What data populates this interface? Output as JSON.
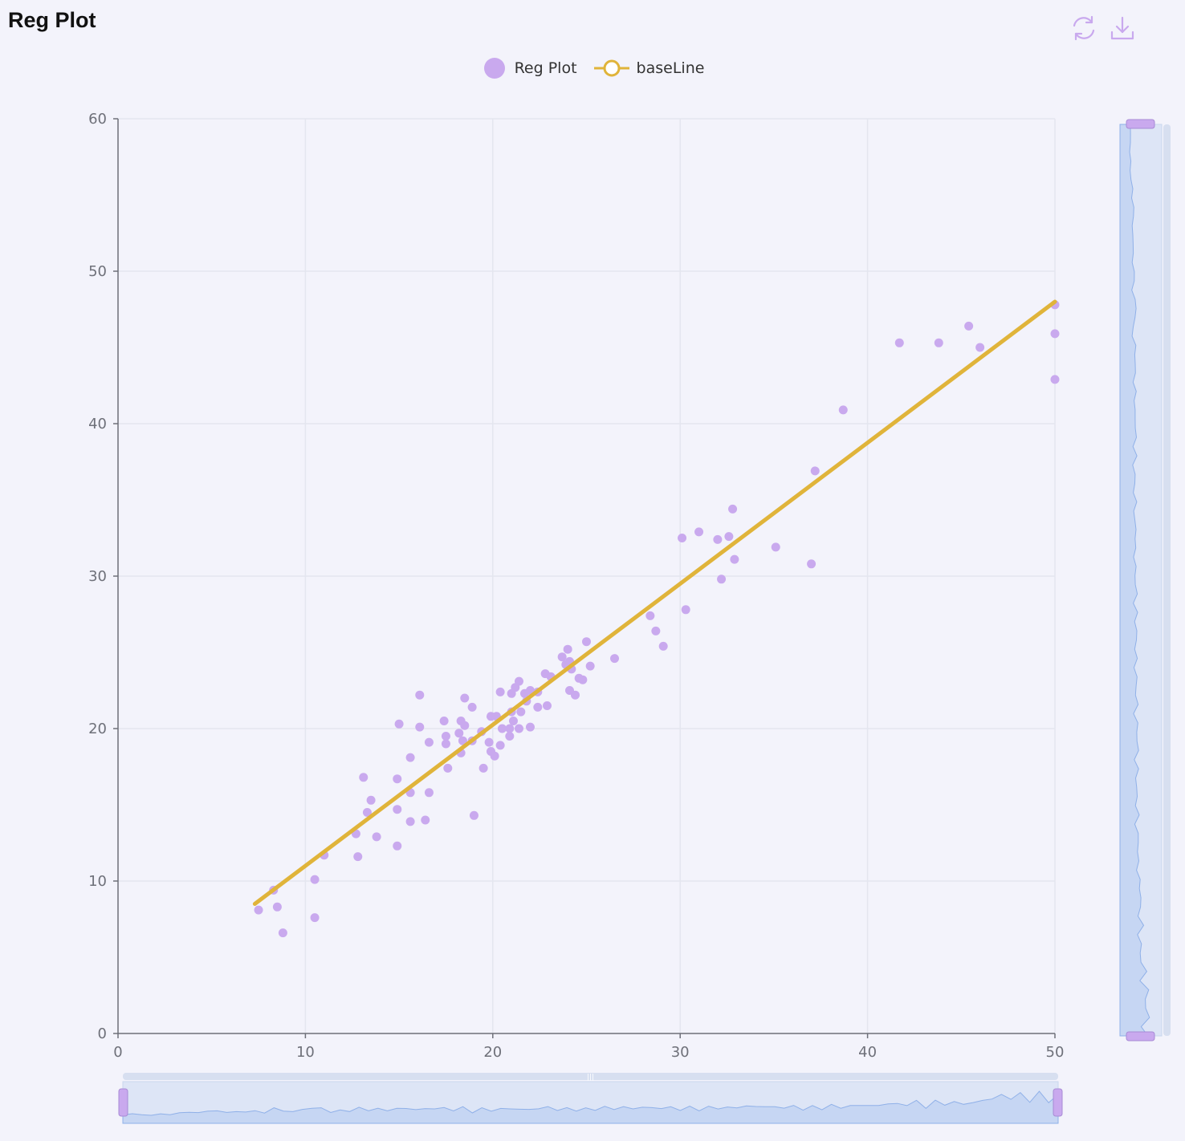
{
  "page": {
    "title": "Reg Plot",
    "toolbar": {
      "restore_icon": "refresh-icon",
      "save_icon": "download-icon"
    }
  },
  "colors": {
    "accent": "#c9a9ee",
    "baseline": "#e0b43a",
    "background": "#f3f3fb"
  },
  "chart_data": {
    "type": "scatter",
    "title": "Reg Plot",
    "xlabel": "",
    "ylabel": "",
    "xlim": [
      0,
      50
    ],
    "ylim": [
      0,
      60
    ],
    "x_ticks": [
      "0",
      "10",
      "20",
      "30",
      "40",
      "50"
    ],
    "y_ticks": [
      "0",
      "10",
      "20",
      "30",
      "40",
      "50",
      "60"
    ],
    "grid": true,
    "legend_position": "top-center",
    "series": [
      {
        "name": "Reg Plot",
        "kind": "scatter",
        "color": "#c9a9ee",
        "points": [
          [
            7.5,
            8.1
          ],
          [
            8.3,
            9.4
          ],
          [
            8.5,
            8.3
          ],
          [
            8.8,
            6.6
          ],
          [
            10.5,
            10.1
          ],
          [
            10.5,
            7.6
          ],
          [
            11.0,
            11.7
          ],
          [
            12.7,
            13.1
          ],
          [
            12.8,
            11.6
          ],
          [
            13.1,
            16.8
          ],
          [
            13.3,
            14.5
          ],
          [
            13.5,
            15.3
          ],
          [
            13.8,
            12.9
          ],
          [
            14.9,
            16.7
          ],
          [
            14.9,
            14.7
          ],
          [
            14.9,
            12.3
          ],
          [
            15.0,
            20.3
          ],
          [
            15.6,
            15.8
          ],
          [
            15.6,
            13.9
          ],
          [
            15.6,
            18.1
          ],
          [
            16.1,
            22.2
          ],
          [
            16.1,
            20.1
          ],
          [
            16.4,
            14.0
          ],
          [
            16.6,
            15.8
          ],
          [
            16.6,
            19.1
          ],
          [
            17.4,
            20.5
          ],
          [
            17.5,
            19.5
          ],
          [
            17.5,
            19.0
          ],
          [
            17.6,
            17.4
          ],
          [
            18.2,
            19.7
          ],
          [
            18.3,
            20.5
          ],
          [
            18.3,
            18.4
          ],
          [
            18.4,
            19.2
          ],
          [
            18.5,
            22.0
          ],
          [
            18.5,
            20.2
          ],
          [
            18.9,
            19.2
          ],
          [
            18.9,
            21.4
          ],
          [
            19.0,
            14.3
          ],
          [
            19.4,
            19.8
          ],
          [
            19.5,
            17.4
          ],
          [
            19.8,
            19.1
          ],
          [
            19.9,
            20.8
          ],
          [
            19.9,
            18.5
          ],
          [
            20.1,
            18.2
          ],
          [
            20.2,
            20.8
          ],
          [
            20.4,
            22.4
          ],
          [
            20.4,
            18.9
          ],
          [
            20.5,
            20.0
          ],
          [
            20.9,
            20.0
          ],
          [
            20.9,
            19.5
          ],
          [
            21.0,
            21.1
          ],
          [
            21.0,
            22.3
          ],
          [
            21.1,
            20.5
          ],
          [
            21.2,
            22.7
          ],
          [
            21.4,
            20.0
          ],
          [
            21.4,
            23.1
          ],
          [
            21.5,
            21.1
          ],
          [
            21.7,
            22.3
          ],
          [
            21.8,
            21.8
          ],
          [
            22.0,
            20.1
          ],
          [
            22.0,
            22.5
          ],
          [
            22.4,
            21.4
          ],
          [
            22.4,
            22.4
          ],
          [
            22.8,
            23.6
          ],
          [
            22.9,
            21.5
          ],
          [
            23.1,
            23.4
          ],
          [
            23.7,
            24.7
          ],
          [
            23.9,
            24.2
          ],
          [
            24.0,
            25.2
          ],
          [
            24.1,
            22.5
          ],
          [
            24.1,
            24.4
          ],
          [
            24.2,
            23.9
          ],
          [
            24.4,
            22.2
          ],
          [
            24.6,
            23.3
          ],
          [
            24.8,
            23.2
          ],
          [
            25.0,
            25.7
          ],
          [
            25.2,
            24.1
          ],
          [
            26.5,
            24.6
          ],
          [
            28.4,
            27.4
          ],
          [
            28.7,
            26.4
          ],
          [
            29.1,
            25.4
          ],
          [
            30.1,
            32.5
          ],
          [
            30.3,
            27.8
          ],
          [
            31.0,
            32.9
          ],
          [
            32.0,
            32.4
          ],
          [
            32.2,
            29.8
          ],
          [
            32.6,
            32.6
          ],
          [
            32.8,
            34.4
          ],
          [
            32.9,
            31.1
          ],
          [
            35.1,
            31.9
          ],
          [
            37.0,
            30.8
          ],
          [
            37.2,
            36.9
          ],
          [
            38.7,
            40.9
          ],
          [
            41.7,
            45.3
          ],
          [
            43.8,
            45.3
          ],
          [
            45.4,
            46.4
          ],
          [
            46.0,
            45.0
          ],
          [
            50.0,
            47.8
          ],
          [
            50.0,
            45.9
          ],
          [
            50.0,
            42.9
          ]
        ]
      },
      {
        "name": "baseLine",
        "kind": "line",
        "color": "#e0b43a",
        "x": [
          7.3,
          50.0
        ],
        "y": [
          8.5,
          48.0
        ]
      }
    ],
    "dataZoom": {
      "x": {
        "start": 0,
        "end": 100
      },
      "y": {
        "start": 0,
        "end": 100
      }
    }
  }
}
